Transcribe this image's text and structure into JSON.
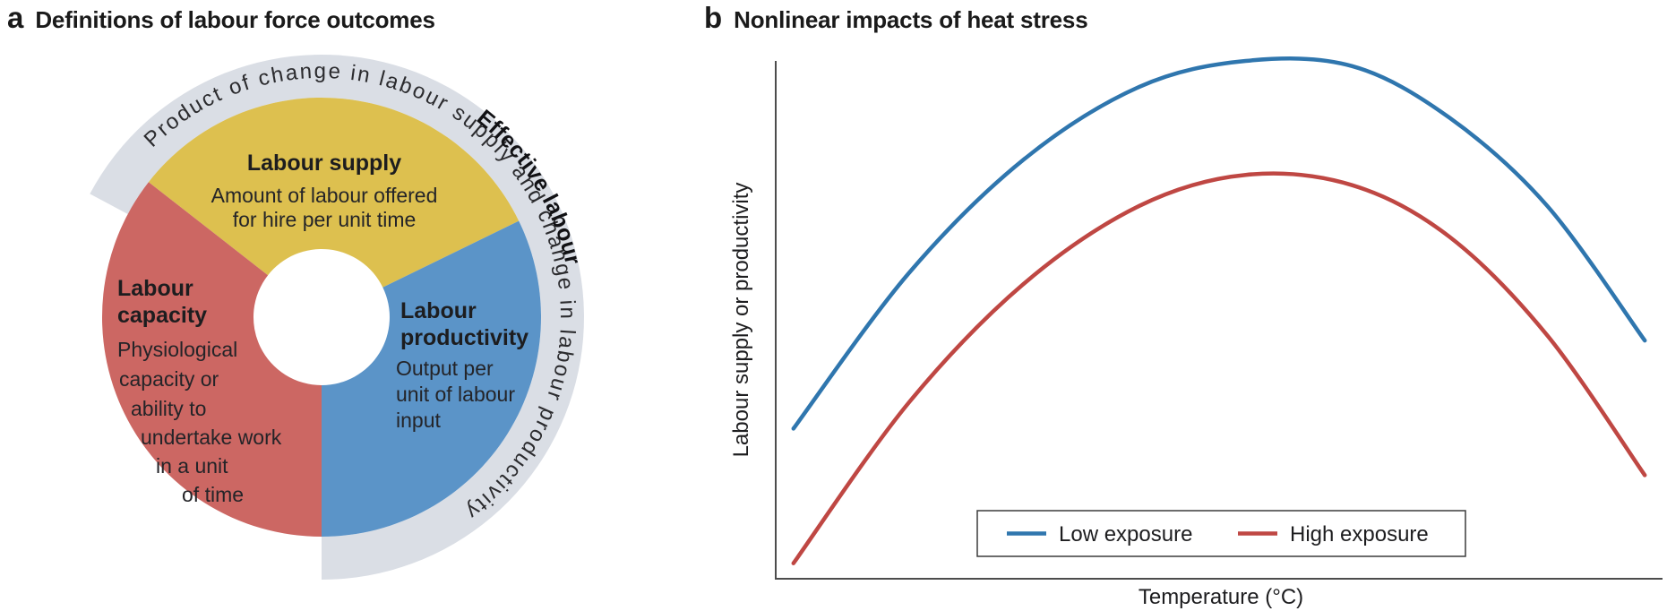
{
  "panel_a": {
    "letter": "a",
    "title": "Definitions of labour force outcomes",
    "ring": {
      "color": "#dadee5",
      "curved_text": "Product of change in labour supply and change in labour productivity",
      "bold_curved_label": "Effective labour"
    },
    "segments": {
      "supply": {
        "color": "#ddc04f",
        "title": "Labour supply",
        "desc": [
          "Amount of labour offered",
          "for hire per unit time"
        ]
      },
      "capacity": {
        "color": "#cc6763",
        "title": [
          "Labour",
          "capacity"
        ],
        "desc": [
          "Physiological",
          "capacity or",
          "ability to",
          "undertake work",
          "in a unit",
          "of time"
        ]
      },
      "productivity": {
        "color": "#5b94c8",
        "title": [
          "Labour",
          "productivity"
        ],
        "desc": [
          "Output per",
          "unit of labour",
          "input"
        ]
      }
    }
  },
  "panel_b": {
    "letter": "b",
    "title": "Nonlinear impacts of heat stress"
  },
  "chart_data": {
    "type": "line",
    "title": "Nonlinear impacts of heat stress",
    "xlabel": "Temperature (°C)",
    "ylabel": "Labour supply or productivity",
    "axes_style": "left and bottom spines only, no ticks, no numeric labels",
    "legend_position": "lower center",
    "x_normalized": [
      0.02,
      0.15,
      0.28,
      0.41,
      0.53,
      0.65,
      0.76,
      0.87,
      0.98
    ],
    "ylim": [
      0,
      1
    ],
    "series": [
      {
        "name": "Low exposure",
        "color": "#2f76ae",
        "values": [
          0.29,
          0.59,
          0.81,
          0.95,
          1.0,
          0.99,
          0.89,
          0.72,
          0.46
        ]
      },
      {
        "name": "High exposure",
        "color": "#bf4743",
        "values": [
          0.03,
          0.34,
          0.57,
          0.72,
          0.78,
          0.76,
          0.66,
          0.47,
          0.2
        ]
      }
    ]
  }
}
